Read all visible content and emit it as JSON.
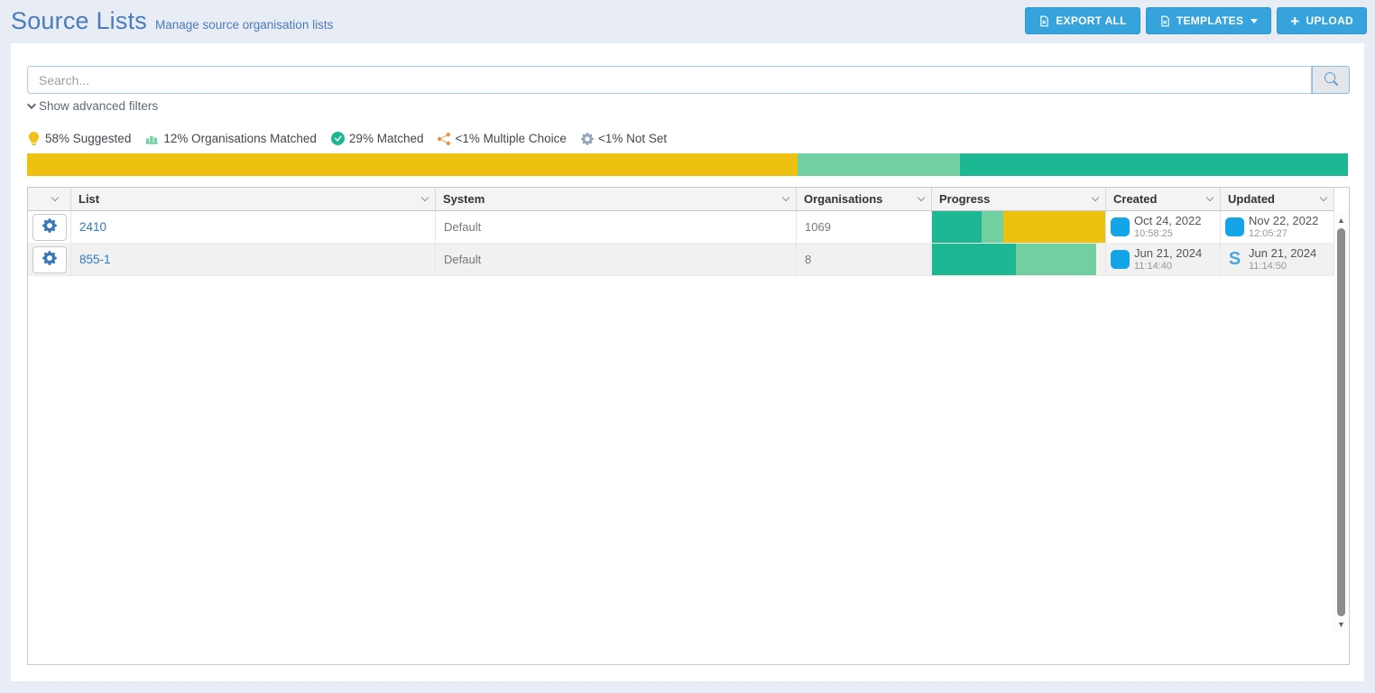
{
  "page": {
    "title": "Source Lists",
    "subtitle": "Manage source organisation lists"
  },
  "toolbar": {
    "export_all_label": "EXPORT ALL",
    "templates_label": "TEMPLATES",
    "upload_label": "UPLOAD"
  },
  "search": {
    "placeholder": "Search...",
    "value": ""
  },
  "filters": {
    "toggle_label": "Show advanced filters"
  },
  "legend": {
    "items": [
      {
        "icon": "lightbulb-icon",
        "color": "#efc11a",
        "label": "58% Suggested"
      },
      {
        "icon": "chart-bar-icon",
        "color": "#72cfa2",
        "label": "12% Organisations Matched"
      },
      {
        "icon": "check-circle-icon",
        "color": "#1db893",
        "label": "29% Matched"
      },
      {
        "icon": "share-icon",
        "color": "#ee8f41",
        "label": "<1% Multiple Choice"
      },
      {
        "icon": "gear-icon",
        "color": "#93a6bb",
        "label": "<1% Not Set"
      }
    ]
  },
  "overall_progress": {
    "segments": [
      {
        "name": "suggested",
        "color": "#eec111",
        "pct": 58.3
      },
      {
        "name": "organisations-matched",
        "color": "#72cfa2",
        "pct": 12.3
      },
      {
        "name": "matched",
        "color": "#1db893",
        "pct": 29.4
      }
    ]
  },
  "table": {
    "columns": [
      "List",
      "System",
      "Organisations",
      "Progress",
      "Created",
      "Updated"
    ],
    "rows": [
      {
        "list": "2410",
        "system": "Default",
        "organisations": "1069",
        "progress": [
          {
            "name": "matched",
            "color": "#1db893",
            "pct": 28.5
          },
          {
            "name": "organisations-matched",
            "color": "#72cfa2",
            "pct": 12.5
          },
          {
            "name": "suggested",
            "color": "#eec111",
            "pct": 59
          }
        ],
        "created": {
          "date": "Oct 24, 2022",
          "time": "10:58:25"
        },
        "updated": {
          "date": "Nov 22, 2022",
          "time": "12:05:27"
        }
      },
      {
        "list": "855-1",
        "system": "Default",
        "organisations": "8",
        "progress": [
          {
            "name": "matched",
            "color": "#1db893",
            "pct": 48.5
          },
          {
            "name": "organisations-matched",
            "color": "#72cfa2",
            "pct": 46.5
          }
        ],
        "created": {
          "date": "Jun 21, 2024",
          "time": "11:14:40"
        },
        "updated": {
          "date": "Jun 21, 2024",
          "time": "11:14:50"
        }
      }
    ]
  }
}
